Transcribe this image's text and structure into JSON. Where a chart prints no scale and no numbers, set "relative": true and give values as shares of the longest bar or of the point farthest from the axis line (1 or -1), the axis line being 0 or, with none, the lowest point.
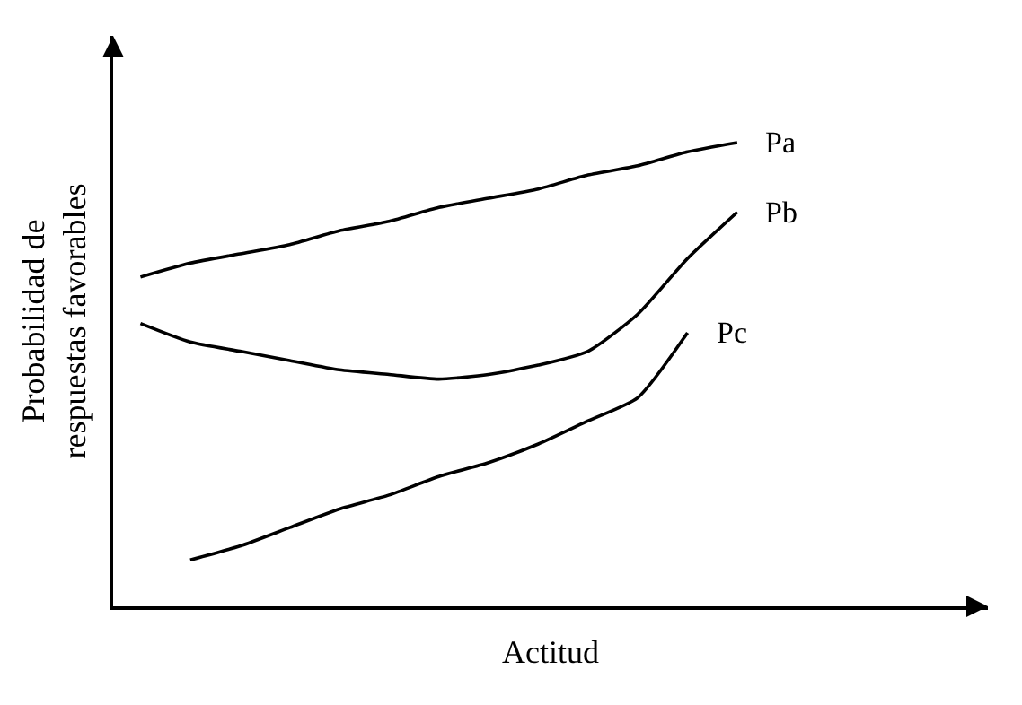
{
  "chart_data": {
    "type": "line",
    "relative": true,
    "xlabel": "Actitud",
    "ylabel": "Probabilidad de\nrespuestas favorables",
    "legend": false,
    "tick_labels": false,
    "marker": "none",
    "line_style": "solid",
    "categories": [
      null,
      null,
      null,
      null,
      null,
      null,
      null,
      null,
      null,
      null,
      null,
      null,
      null
    ],
    "series": [
      {
        "name": "Pa",
        "color": "#000000",
        "values": [
          0.71,
          0.74,
          0.76,
          0.78,
          0.81,
          0.83,
          0.86,
          0.88,
          0.9,
          0.93,
          0.95,
          0.98,
          1.0
        ]
      },
      {
        "name": "Pb",
        "color": "#000000",
        "values": [
          0.61,
          0.57,
          0.55,
          0.53,
          0.51,
          0.5,
          0.49,
          0.5,
          0.52,
          0.55,
          0.63,
          0.75,
          0.85
        ]
      },
      {
        "name": "Pc",
        "color": "#000000",
        "values": [
          null,
          0.1,
          0.13,
          0.17,
          0.21,
          0.24,
          0.28,
          0.31,
          0.35,
          0.4,
          0.45,
          0.59,
          null
        ]
      }
    ]
  }
}
